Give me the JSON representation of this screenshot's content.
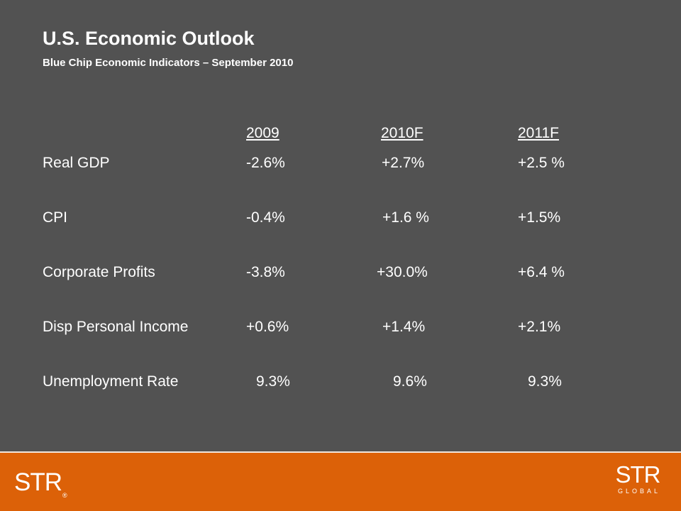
{
  "slide": {
    "title": "U.S. Economic Outlook",
    "subtitle": "Blue Chip Economic Indicators – September 2010"
  },
  "table": {
    "columns": [
      "2009",
      "2010F",
      "2011F"
    ],
    "rows": [
      {
        "label": "Real GDP",
        "values": [
          "-2.6%",
          "+2.7%",
          "+2.5 %"
        ]
      },
      {
        "label": "CPI",
        "values": [
          "-0.4%",
          "+1.6 %",
          "+1.5%"
        ]
      },
      {
        "label": "Corporate Profits",
        "values": [
          "-3.8%",
          "+30.0%",
          "+6.4 %"
        ]
      },
      {
        "label": "Disp Personal Income",
        "values": [
          "+0.6%",
          "+1.4%",
          "+2.1%"
        ]
      },
      {
        "label": "Unemployment Rate",
        "values": [
          "9.3%",
          "9.6%",
          "9.3%"
        ]
      }
    ]
  },
  "footer": {
    "left_logo": "STR",
    "left_logo_mark": "®",
    "right_logo": "STR",
    "right_logo_sub": "GLOBAL",
    "color": "#dc6108"
  },
  "colors": {
    "background": "#525252",
    "text": "#ffffff"
  }
}
